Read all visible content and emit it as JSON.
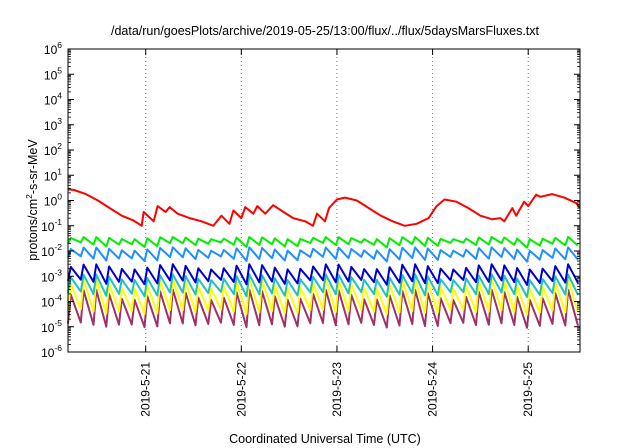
{
  "chart_data": {
    "type": "line",
    "title": "/data/run/goesPlots/archive/2019-05-25/13:00/flux/../flux/5daysMarsFluxes.txt",
    "xlabel": "Coordinated Universal Time (UTC)",
    "ylabel": {
      "pre": "protons/cm",
      "sup": "2",
      "post": "-s-sr-MeV"
    },
    "x_range": [
      "2019-05-20T04:30",
      "2019-05-25T13:00"
    ],
    "x_ticks": [
      {
        "label": "2019-5-21",
        "t": "2019-05-21T00:00"
      },
      {
        "label": "2019-5-22",
        "t": "2019-05-22T00:00"
      },
      {
        "label": "2019-5-23",
        "t": "2019-05-23T00:00"
      },
      {
        "label": "2019-5-24",
        "t": "2019-05-24T00:00"
      },
      {
        "label": "2019-5-25",
        "t": "2019-05-25T00:00"
      }
    ],
    "y_scale": "log",
    "ylim": [
      1e-06,
      1000000.0
    ],
    "y_ticks": [
      {
        "base": "10",
        "exp": "-6",
        "value": 1e-06
      },
      {
        "base": "10",
        "exp": "-5",
        "value": 1e-05
      },
      {
        "base": "10",
        "exp": "-4",
        "value": 0.0001
      },
      {
        "base": "10",
        "exp": "-3",
        "value": 0.001
      },
      {
        "base": "10",
        "exp": "-2",
        "value": 0.01
      },
      {
        "base": "10",
        "exp": "-1",
        "value": 0.1
      },
      {
        "base": "10",
        "exp": "0",
        "value": 1
      },
      {
        "base": "10",
        "exp": "1",
        "value": 10
      },
      {
        "base": "10",
        "exp": "2",
        "value": 100
      },
      {
        "base": "10",
        "exp": "3",
        "value": 1000
      },
      {
        "base": "10",
        "exp": "4",
        "value": 10000
      },
      {
        "base": "10",
        "exp": "5",
        "value": 100000
      },
      {
        "base": "10",
        "exp": "6",
        "value": 1000000
      }
    ],
    "grid": "dotted vertical lines at x ticks",
    "series": [
      {
        "color": "#ff0000",
        "x": [
          "2019-05-20T04:30",
          "2019-05-20T06:00",
          "2019-05-20T09:00",
          "2019-05-20T12:00",
          "2019-05-20T15:00",
          "2019-05-20T18:00",
          "2019-05-20T21:00",
          "2019-05-20T23:00",
          "2019-05-20T23:30",
          "2019-05-21T02:00",
          "2019-05-21T03:00",
          "2019-05-21T05:00",
          "2019-05-21T06:00",
          "2019-05-21T08:00",
          "2019-05-21T11:00",
          "2019-05-21T14:00",
          "2019-05-21T17:00",
          "2019-05-21T19:00",
          "2019-05-21T21:00",
          "2019-05-21T22:00",
          "2019-05-22T00:00",
          "2019-05-22T01:00",
          "2019-05-22T03:00",
          "2019-05-22T04:00",
          "2019-05-22T06:00",
          "2019-05-22T08:00",
          "2019-05-22T10:00",
          "2019-05-22T13:00",
          "2019-05-22T16:00",
          "2019-05-22T18:00",
          "2019-05-22T19:00",
          "2019-05-22T21:00",
          "2019-05-22T22:00",
          "2019-05-23T00:00",
          "2019-05-23T02:00",
          "2019-05-23T05:00",
          "2019-05-23T08:00",
          "2019-05-23T11:00",
          "2019-05-23T14:00",
          "2019-05-23T17:00",
          "2019-05-23T20:00",
          "2019-05-23T23:00",
          "2019-05-24T01:00",
          "2019-05-24T03:00",
          "2019-05-24T06:00",
          "2019-05-24T09:00",
          "2019-05-24T12:00",
          "2019-05-24T15:00",
          "2019-05-24T17:00",
          "2019-05-24T18:00",
          "2019-05-24T20:00",
          "2019-05-24T21:00",
          "2019-05-24T23:00",
          "2019-05-25T00:00",
          "2019-05-25T02:00",
          "2019-05-25T03:00",
          "2019-05-25T06:00",
          "2019-05-25T09:00",
          "2019-05-25T12:00",
          "2019-05-25T13:00"
        ],
        "y": [
          2.8,
          2.6,
          1.8,
          1.0,
          0.5,
          0.25,
          0.16,
          0.1,
          0.35,
          0.15,
          0.6,
          0.35,
          0.55,
          0.3,
          0.2,
          0.15,
          0.1,
          0.25,
          0.12,
          0.4,
          0.2,
          0.55,
          0.3,
          0.6,
          0.3,
          0.65,
          0.4,
          0.2,
          0.15,
          0.1,
          0.3,
          0.15,
          0.5,
          1.1,
          1.3,
          1.0,
          0.5,
          0.25,
          0.15,
          0.1,
          0.12,
          0.2,
          0.6,
          1.1,
          0.9,
          0.5,
          0.25,
          0.18,
          0.2,
          0.15,
          0.5,
          0.25,
          0.9,
          0.6,
          1.7,
          1.4,
          1.8,
          1.3,
          0.8,
          0.5
        ]
      },
      {
        "color": "#00ee00",
        "x": [
          "2019-05-20T04:30",
          "2019-05-25T13:00"
        ],
        "y": [
          0.03,
          0.03
        ],
        "pattern": {
          "period_h": 3.2,
          "lo": 0.018,
          "hi": 0.036
        }
      },
      {
        "color": "#1e90ff",
        "x": [
          "2019-05-20T04:30",
          "2019-05-25T13:00"
        ],
        "y": [
          0.011,
          0.009
        ],
        "pattern": {
          "period_h": 3.2,
          "lo": 0.005,
          "hi": 0.014
        }
      },
      {
        "color": "#0000cd",
        "x": [
          "2019-05-20T04:30",
          "2019-05-25T13:00"
        ],
        "y": [
          0.002,
          0.002
        ],
        "pattern": {
          "period_h": 3.2,
          "lo": 0.0006,
          "hi": 0.003
        }
      },
      {
        "color": "#20c0c0",
        "x": [
          "2019-05-20T04:30",
          "2019-05-25T13:00"
        ],
        "y": [
          0.0008,
          0.0008
        ],
        "pattern": {
          "period_h": 3.2,
          "lo": 0.0002,
          "hi": 0.0012
        }
      },
      {
        "color": "#ffff00",
        "x": [
          "2019-05-20T04:30",
          "2019-05-25T13:00"
        ],
        "y": [
          0.0004,
          0.0004
        ],
        "pattern": {
          "period_h": 3.2,
          "lo": 4e-05,
          "hi": 0.0008
        }
      },
      {
        "color": "#a0306a",
        "x": [
          "2019-05-20T04:30",
          "2019-05-25T13:00"
        ],
        "y": [
          0.0001,
          0.0001
        ],
        "pattern": {
          "period_h": 3.2,
          "lo": 1.2e-05,
          "hi": 0.0003
        }
      }
    ]
  }
}
